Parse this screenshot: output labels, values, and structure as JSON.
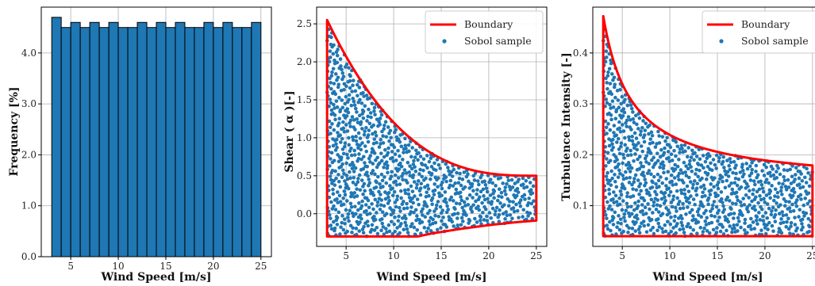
{
  "figure": {
    "colors": {
      "bar": "#1f77b4",
      "bar_edge": "#000000",
      "boundary": "#ff0000",
      "sample": "#1f77b4",
      "grid": "#b0b0b0"
    }
  },
  "chart_data": [
    {
      "type": "bar",
      "xlabel": "Wind Speed [m/s]",
      "ylabel": "Frequency [%]",
      "xlim": [
        1.9,
        26.1
      ],
      "ylim": [
        0.0,
        4.9
      ],
      "xticks": [
        5,
        10,
        15,
        20,
        25
      ],
      "yticks": [
        0.0,
        1.0,
        2.0,
        3.0,
        4.0
      ],
      "xtick_labels": [
        "5",
        "10",
        "15",
        "20",
        "25"
      ],
      "ytick_labels": [
        "0.0",
        "1.0",
        "2.0",
        "3.0",
        "4.0"
      ],
      "grid": true,
      "bin_edges": [
        3,
        4,
        5,
        6,
        7,
        8,
        9,
        10,
        11,
        12,
        13,
        14,
        15,
        16,
        17,
        18,
        19,
        20,
        21,
        22,
        23,
        24,
        25
      ],
      "values": [
        4.7,
        4.5,
        4.6,
        4.5,
        4.6,
        4.5,
        4.6,
        4.5,
        4.5,
        4.6,
        4.5,
        4.6,
        4.5,
        4.6,
        4.5,
        4.5,
        4.6,
        4.5,
        4.6,
        4.5,
        4.5,
        4.6
      ]
    },
    {
      "type": "scatter",
      "xlabel": "Wind Speed [m/s]",
      "ylabel": "Shear ( α )[-]",
      "xlim": [
        1.9,
        26.1
      ],
      "ylim": [
        -0.43,
        2.72
      ],
      "xticks": [
        5,
        10,
        15,
        20,
        25
      ],
      "yticks": [
        0.0,
        0.5,
        1.0,
        1.5,
        2.0,
        2.5
      ],
      "xtick_labels": [
        "5",
        "10",
        "15",
        "20",
        "25"
      ],
      "ytick_labels": [
        "0.0",
        "0.5",
        "1.0",
        "1.5",
        "2.0",
        "2.5"
      ],
      "grid": true,
      "legend": {
        "position": "top-right",
        "entries": [
          "Boundary",
          "Sobol sample"
        ]
      },
      "boundary": {
        "name": "Boundary",
        "upper": {
          "formula": "0.5 + 2.05*((25 - x)/22)^2.8",
          "x_range": [
            3,
            25
          ]
        },
        "lower": {
          "points": [
            [
              3,
              -0.3
            ],
            [
              12.5,
              -0.3
            ],
            [
              14,
              -0.26
            ],
            [
              17,
              -0.2
            ],
            [
              20,
              -0.15
            ],
            [
              23,
              -0.11
            ],
            [
              25,
              -0.09
            ]
          ]
        }
      },
      "series": [
        {
          "name": "Sobol sample",
          "n_points": 1000,
          "distribution": "uniform within boundary"
        }
      ]
    },
    {
      "type": "scatter",
      "xlabel": "Wind Speed [m/s]",
      "ylabel": "Turbulence Intensity [-]",
      "xlim": [
        1.9,
        26.1
      ],
      "ylim": [
        0.02,
        0.49
      ],
      "xticks": [
        5,
        10,
        15,
        20,
        25
      ],
      "yticks": [
        0.1,
        0.2,
        0.3,
        0.4
      ],
      "xtick_labels": [
        "5",
        "10",
        "15",
        "20",
        "25"
      ],
      "ytick_labels": [
        "0.1",
        "0.2",
        "0.3",
        "0.4"
      ],
      "grid": true,
      "legend": {
        "position": "top-right",
        "entries": [
          "Boundary",
          "Sobol sample"
        ]
      },
      "boundary": {
        "name": "Boundary",
        "upper": {
          "formula": "0.139 + 1.0/x",
          "x_range": [
            3,
            25
          ]
        },
        "lower": {
          "points": [
            [
              3,
              0.04
            ],
            [
              25,
              0.04
            ]
          ]
        }
      },
      "series": [
        {
          "name": "Sobol sample",
          "n_points": 1000,
          "distribution": "uniform within boundary"
        }
      ]
    }
  ]
}
